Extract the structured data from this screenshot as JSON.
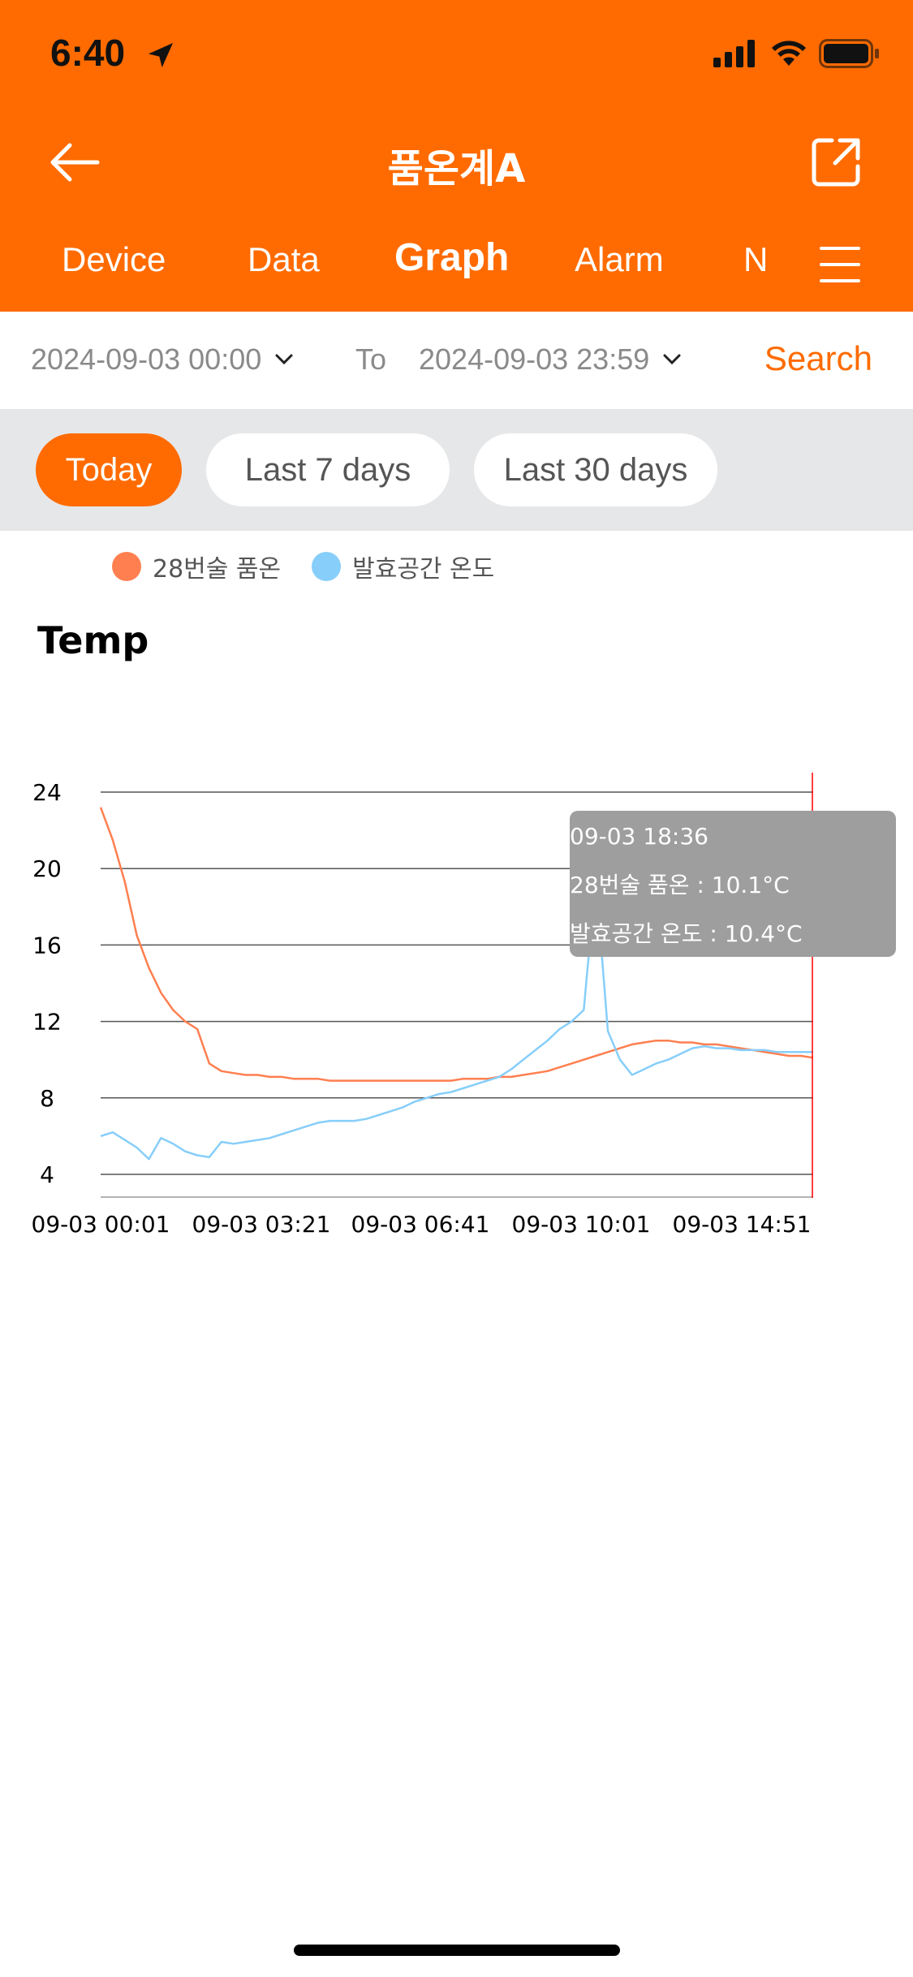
{
  "status_bar": {
    "time": "6:40"
  },
  "header": {
    "title": "품온계A"
  },
  "tabs": [
    {
      "label": "Device"
    },
    {
      "label": "Data"
    },
    {
      "label": "Graph"
    },
    {
      "label": "Alarm"
    },
    {
      "label": "N"
    }
  ],
  "active_tab": "Graph",
  "date_range": {
    "from": "2024-09-03 00:00",
    "to_label": "To",
    "to": "2024-09-03 23:59",
    "search_label": "Search"
  },
  "quick_ranges": [
    {
      "label": "Today",
      "active": true
    },
    {
      "label": "Last 7 days",
      "active": false
    },
    {
      "label": "Last 30 days",
      "active": false
    }
  ],
  "colors": {
    "accent": "#FF6B00",
    "series1": "#FF7F50",
    "series2": "#87CEFA",
    "cursor": "#FF0000"
  },
  "chart_data": {
    "type": "line",
    "title": "Temp",
    "ylim": [
      4,
      24
    ],
    "yticks": [
      4,
      8,
      12,
      16,
      20,
      24
    ],
    "xtick_labels": [
      "09-03 00:01",
      "09-03 03:21",
      "09-03 06:41",
      "09-03 10:01",
      "09-03 14:51"
    ],
    "grid": true,
    "legend_position": "top",
    "series": [
      {
        "name": "28번술 품온",
        "color": "#FF7F50",
        "values": [
          23.2,
          21.5,
          19.3,
          16.5,
          14.8,
          13.5,
          12.6,
          12.0,
          11.6,
          9.8,
          9.4,
          9.3,
          9.2,
          9.2,
          9.1,
          9.1,
          9.0,
          9.0,
          9.0,
          8.9,
          8.9,
          8.9,
          8.9,
          8.9,
          8.9,
          8.9,
          8.9,
          8.9,
          8.9,
          8.9,
          9.0,
          9.0,
          9.0,
          9.1,
          9.1,
          9.2,
          9.3,
          9.4,
          9.6,
          9.8,
          10.0,
          10.2,
          10.4,
          10.6,
          10.8,
          10.9,
          11.0,
          11.0,
          10.9,
          10.9,
          10.8,
          10.8,
          10.7,
          10.6,
          10.5,
          10.4,
          10.3,
          10.2,
          10.2,
          10.1
        ]
      },
      {
        "name": "발효공간 온도",
        "color": "#87CEFA",
        "values": [
          6.0,
          6.2,
          5.8,
          5.4,
          4.8,
          5.9,
          5.6,
          5.2,
          5.0,
          4.9,
          5.7,
          5.6,
          5.7,
          5.8,
          5.9,
          6.1,
          6.3,
          6.5,
          6.7,
          6.8,
          6.8,
          6.8,
          6.9,
          7.1,
          7.3,
          7.5,
          7.8,
          8.0,
          8.2,
          8.3,
          8.5,
          8.7,
          8.9,
          9.1,
          9.5,
          10.0,
          10.5,
          11.0,
          11.6,
          12.0,
          12.6,
          19.5,
          11.5,
          10.0,
          9.2,
          9.5,
          9.8,
          10.0,
          10.3,
          10.6,
          10.7,
          10.6,
          10.6,
          10.5,
          10.5,
          10.5,
          10.4,
          10.4,
          10.4,
          10.4
        ]
      }
    ],
    "tooltip": {
      "time": "09-03 18:36",
      "line1": "28번술 품온 : 10.1°C",
      "line2": "발효공간 온도 : 10.4°C"
    }
  }
}
